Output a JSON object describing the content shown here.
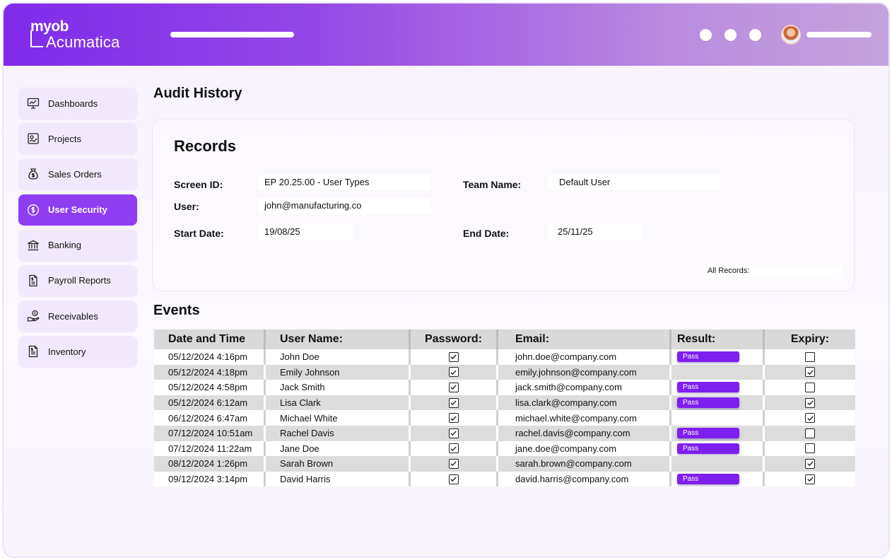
{
  "brand": {
    "line1": "myob",
    "line2": "Acumatica"
  },
  "sidebar": {
    "items": [
      {
        "label": "Dashboards",
        "icon": "monitor-chart-icon",
        "active": false
      },
      {
        "label": "Projects",
        "icon": "project-board-icon",
        "active": false
      },
      {
        "label": "Sales Orders",
        "icon": "money-bag-icon",
        "active": false
      },
      {
        "label": "User Security",
        "icon": "dollar-circle-icon",
        "active": true
      },
      {
        "label": "Banking",
        "icon": "bank-icon",
        "active": false
      },
      {
        "label": "Payroll Reports",
        "icon": "report-document-icon",
        "active": false
      },
      {
        "label": "Receivables",
        "icon": "hand-coin-icon",
        "active": false
      },
      {
        "label": "Inventory",
        "icon": "inventory-document-icon",
        "active": false
      }
    ]
  },
  "page_title": "Audit History",
  "records": {
    "title": "Records",
    "screen_id_label": "Screen ID:",
    "screen_id_value": "EP 20.25.00 - User Types",
    "team_name_label": "Team Name:",
    "team_name_value": "Default User",
    "user_label": "User:",
    "user_value": "john@manufacturing.co",
    "start_date_label": "Start Date:",
    "start_date_value": "19/08/25",
    "end_date_label": "End Date:",
    "end_date_value": "25/11/25",
    "all_records_label": "All Records:"
  },
  "events": {
    "title": "Events",
    "columns": [
      "Date and Time",
      "User Name:",
      "Password:",
      "Email:",
      "Result:",
      "Expiry:"
    ],
    "pass_label": "Pass",
    "rows": [
      {
        "datetime": "05/12/2024 4:16pm",
        "user": "John Doe",
        "password": true,
        "email": "john.doe@company.com",
        "pass": true,
        "expiry": false
      },
      {
        "datetime": "05/12/2024 4:18pm",
        "user": "Emily Johnson",
        "password": true,
        "email": "emily.johnson@company.com",
        "pass": false,
        "expiry": true
      },
      {
        "datetime": "05/12/2024 4:58pm",
        "user": "Jack Smith",
        "password": true,
        "email": "jack.smith@company.com",
        "pass": true,
        "expiry": false
      },
      {
        "datetime": "05/12/2024 6:12am",
        "user": "Lisa Clark",
        "password": true,
        "email": "lisa.clark@company.com",
        "pass": true,
        "expiry": true
      },
      {
        "datetime": "06/12/2024 6:47am",
        "user": "Michael White",
        "password": true,
        "email": "michael.white@company.com",
        "pass": false,
        "expiry": true
      },
      {
        "datetime": "07/12/2024 10:51am",
        "user": "Rachel Davis",
        "password": true,
        "email": "rachel.davis@company.com",
        "pass": true,
        "expiry": false
      },
      {
        "datetime": "07/12/2024 11:22am",
        "user": "Jane Doe",
        "password": true,
        "email": "jane.doe@company.com",
        "pass": true,
        "expiry": false
      },
      {
        "datetime": "08/12/2024 1:26pm",
        "user": "Sarah Brown",
        "password": true,
        "email": "sarah.brown@company.com",
        "pass": false,
        "expiry": true
      },
      {
        "datetime": "09/12/2024 3:14pm",
        "user": "David Harris",
        "password": true,
        "email": "david.harris@company.com",
        "pass": true,
        "expiry": true
      }
    ]
  },
  "colors": {
    "accent": "#8e3df0",
    "badge": "#7d1fee",
    "header_start": "#7f2bea",
    "header_end": "#c4a3dd"
  }
}
